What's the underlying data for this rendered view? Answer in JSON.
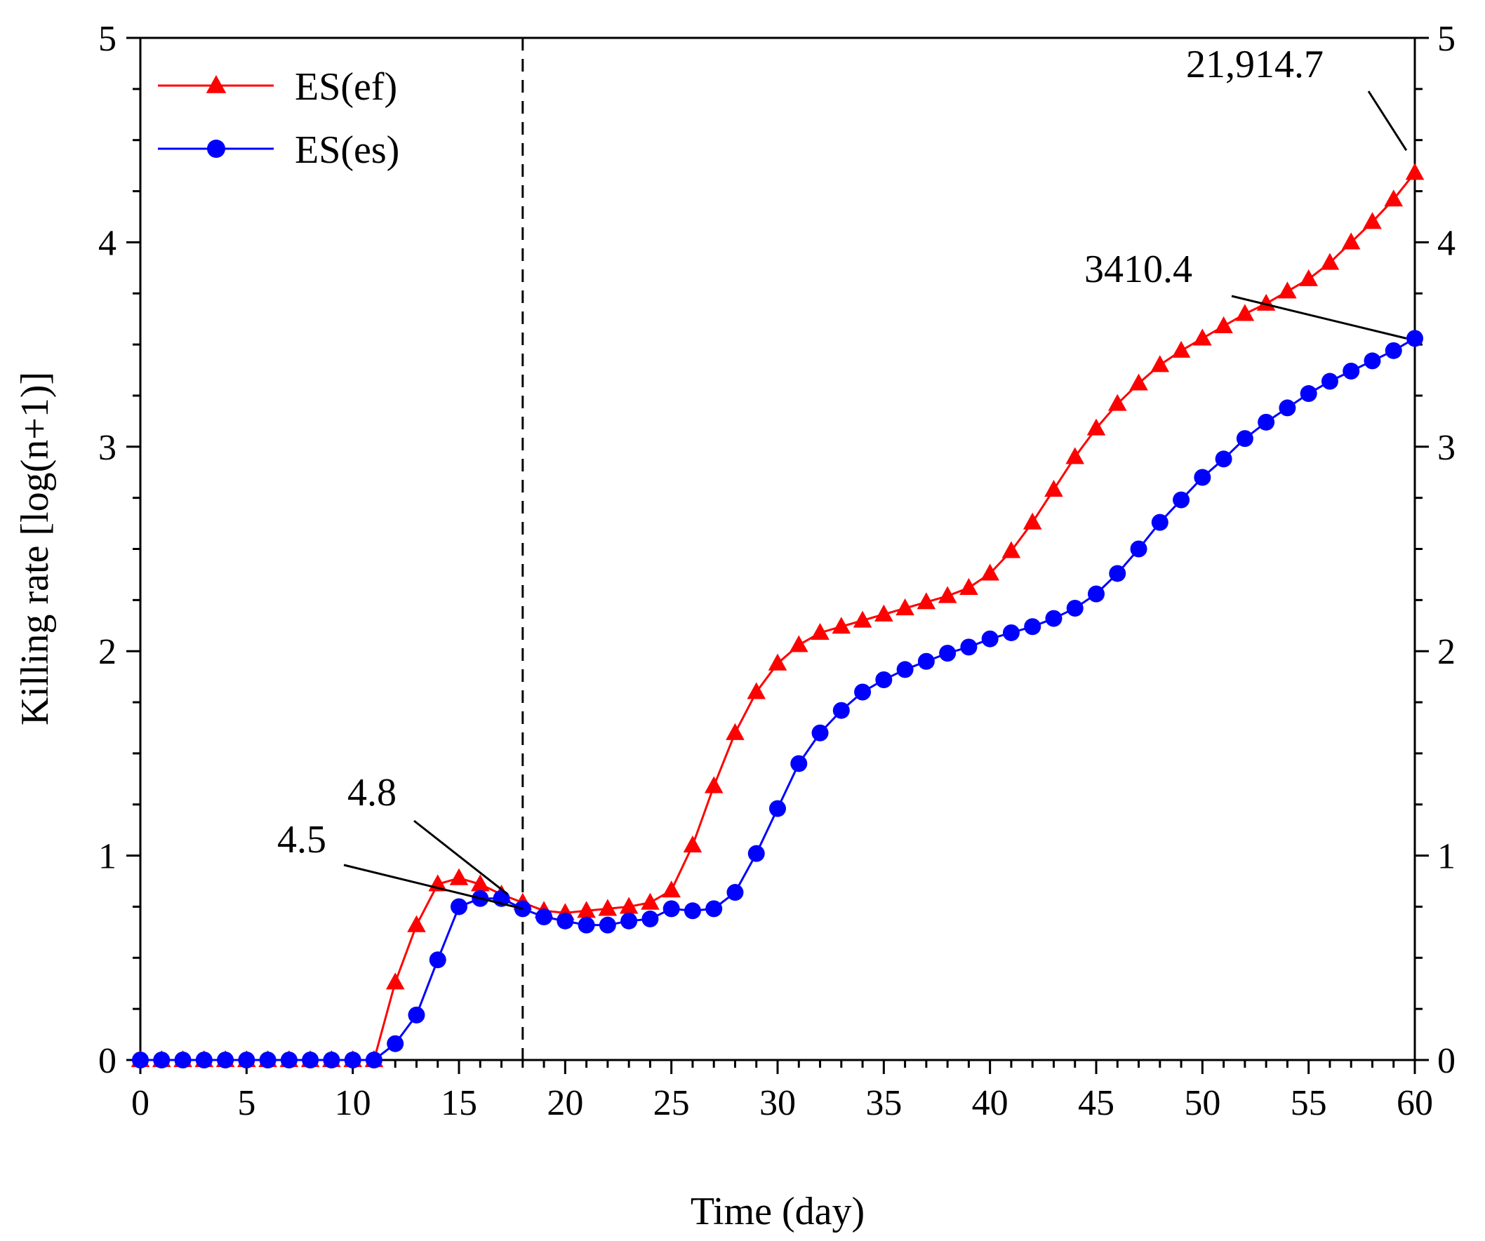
{
  "chart_data": {
    "type": "line",
    "title": "",
    "xlabel": "Time (day)",
    "ylabel": "Killing rate [log(n+1)]",
    "xlim": [
      0,
      60
    ],
    "ylim": [
      0,
      5
    ],
    "x_ticks": [
      0,
      5,
      10,
      15,
      20,
      25,
      30,
      35,
      40,
      45,
      50,
      55,
      60
    ],
    "y_ticks": [
      0,
      1,
      2,
      3,
      4,
      5
    ],
    "y_tick_labels": [
      "0",
      "1",
      "2",
      "3",
      "4",
      "5"
    ],
    "right_y_axis": true,
    "reference_line_x": 18,
    "legend_position": "top-left",
    "series": [
      {
        "name": "ES(ef)",
        "color": "#ff0000",
        "marker": "triangle",
        "x": [
          0,
          1,
          2,
          3,
          4,
          5,
          6,
          7,
          8,
          9,
          10,
          11,
          12,
          13,
          14,
          15,
          16,
          17,
          18,
          19,
          20,
          21,
          22,
          23,
          24,
          25,
          26,
          27,
          28,
          29,
          30,
          31,
          32,
          33,
          34,
          35,
          36,
          37,
          38,
          39,
          40,
          41,
          42,
          43,
          44,
          45,
          46,
          47,
          48,
          49,
          50,
          51,
          52,
          53,
          54,
          55,
          56,
          57,
          58,
          59,
          60
        ],
        "values": [
          0,
          0,
          0,
          0,
          0,
          0,
          0,
          0,
          0,
          0,
          0,
          0,
          0.38,
          0.66,
          0.86,
          0.89,
          0.86,
          0.81,
          0.77,
          0.73,
          0.72,
          0.73,
          0.74,
          0.75,
          0.77,
          0.83,
          1.05,
          1.34,
          1.6,
          1.8,
          1.94,
          2.03,
          2.09,
          2.12,
          2.15,
          2.18,
          2.21,
          2.24,
          2.27,
          2.31,
          2.38,
          2.49,
          2.63,
          2.79,
          2.95,
          3.09,
          3.21,
          3.31,
          3.4,
          3.47,
          3.53,
          3.59,
          3.65,
          3.7,
          3.76,
          3.82,
          3.9,
          4.0,
          4.1,
          4.21,
          4.34
        ]
      },
      {
        "name": "ES(es)",
        "color": "#0000ff",
        "marker": "circle",
        "x": [
          0,
          1,
          2,
          3,
          4,
          5,
          6,
          7,
          8,
          9,
          10,
          11,
          12,
          13,
          14,
          15,
          16,
          17,
          18,
          19,
          20,
          21,
          22,
          23,
          24,
          25,
          26,
          27,
          28,
          29,
          30,
          31,
          32,
          33,
          34,
          35,
          36,
          37,
          38,
          39,
          40,
          41,
          42,
          43,
          44,
          45,
          46,
          47,
          48,
          49,
          50,
          51,
          52,
          53,
          54,
          55,
          56,
          57,
          58,
          59,
          60
        ],
        "values": [
          0,
          0,
          0,
          0,
          0,
          0,
          0,
          0,
          0,
          0,
          0,
          0,
          0.08,
          0.22,
          0.49,
          0.75,
          0.79,
          0.79,
          0.74,
          0.7,
          0.68,
          0.66,
          0.66,
          0.68,
          0.69,
          0.74,
          0.73,
          0.74,
          0.82,
          1.01,
          1.23,
          1.45,
          1.6,
          1.71,
          1.8,
          1.86,
          1.91,
          1.95,
          1.99,
          2.02,
          2.06,
          2.09,
          2.12,
          2.16,
          2.21,
          2.28,
          2.38,
          2.5,
          2.63,
          2.74,
          2.85,
          2.94,
          3.04,
          3.12,
          3.19,
          3.26,
          3.32,
          3.37,
          3.42,
          3.47,
          3.53
        ]
      }
    ],
    "annotations": [
      {
        "text": "4.5",
        "x": 18,
        "y": 0.74
      },
      {
        "text": "4.8",
        "x": 17.3,
        "y": 0.81
      },
      {
        "text": "21,914.7",
        "x": 59.6,
        "y": 4.45
      },
      {
        "text": "3410.4",
        "x": 59.6,
        "y": 3.53
      }
    ]
  }
}
